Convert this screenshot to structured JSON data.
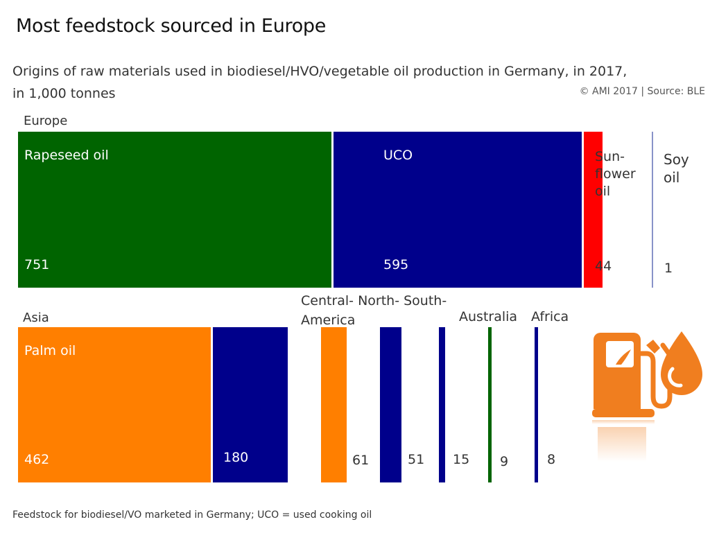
{
  "title": "Most feedstock sourced in Europe",
  "subtitle": "Origins of raw materials used in biodiesel/HVO/vegetable oil production in Germany, in 2017, in 1,000 tonnes",
  "source": "© AMI 2017 | Source: BLE",
  "footnote": "Feedstock for biodiesel/VO marketed in Germany; UCO = used cooking oil",
  "colors": {
    "rapeseed": "#006400",
    "uco": "#00008b",
    "sunflower": "#ff0000",
    "palm": "#ff7f00",
    "icon": "#f07e1f"
  },
  "icons": [
    "fuel-pump-icon",
    "oil-drop-icon"
  ],
  "chart_data": {
    "type": "treemap",
    "unit": "1,000 tonnes",
    "groups": [
      {
        "region": "Europe",
        "items": [
          {
            "name": "Rapeseed oil",
            "value": 751,
            "color": "#006400"
          },
          {
            "name": "UCO",
            "value": 595,
            "color": "#00008b"
          },
          {
            "name": "Sun-flower oil",
            "value": 44,
            "color": "#ff0000"
          },
          {
            "name": "Soy oil",
            "value": 1,
            "color": "#00008b"
          }
        ]
      },
      {
        "region": "Asia",
        "items": [
          {
            "name": "Palm oil",
            "value": 462,
            "color": "#ff7f00"
          },
          {
            "name": "",
            "value": 180,
            "color": "#00008b"
          }
        ]
      },
      {
        "region": "Central- North- South- America",
        "items": [
          {
            "name": "",
            "value": 61,
            "color": "#ff7f00"
          },
          {
            "name": "",
            "value": 51,
            "color": "#00008b"
          },
          {
            "name": "",
            "value": 15,
            "color": "#00008b"
          }
        ]
      },
      {
        "region": "Australia",
        "items": [
          {
            "name": "",
            "value": 9,
            "color": "#006400"
          }
        ]
      },
      {
        "region": "Africa",
        "items": [
          {
            "name": "",
            "value": 8,
            "color": "#00008b"
          }
        ]
      }
    ]
  }
}
